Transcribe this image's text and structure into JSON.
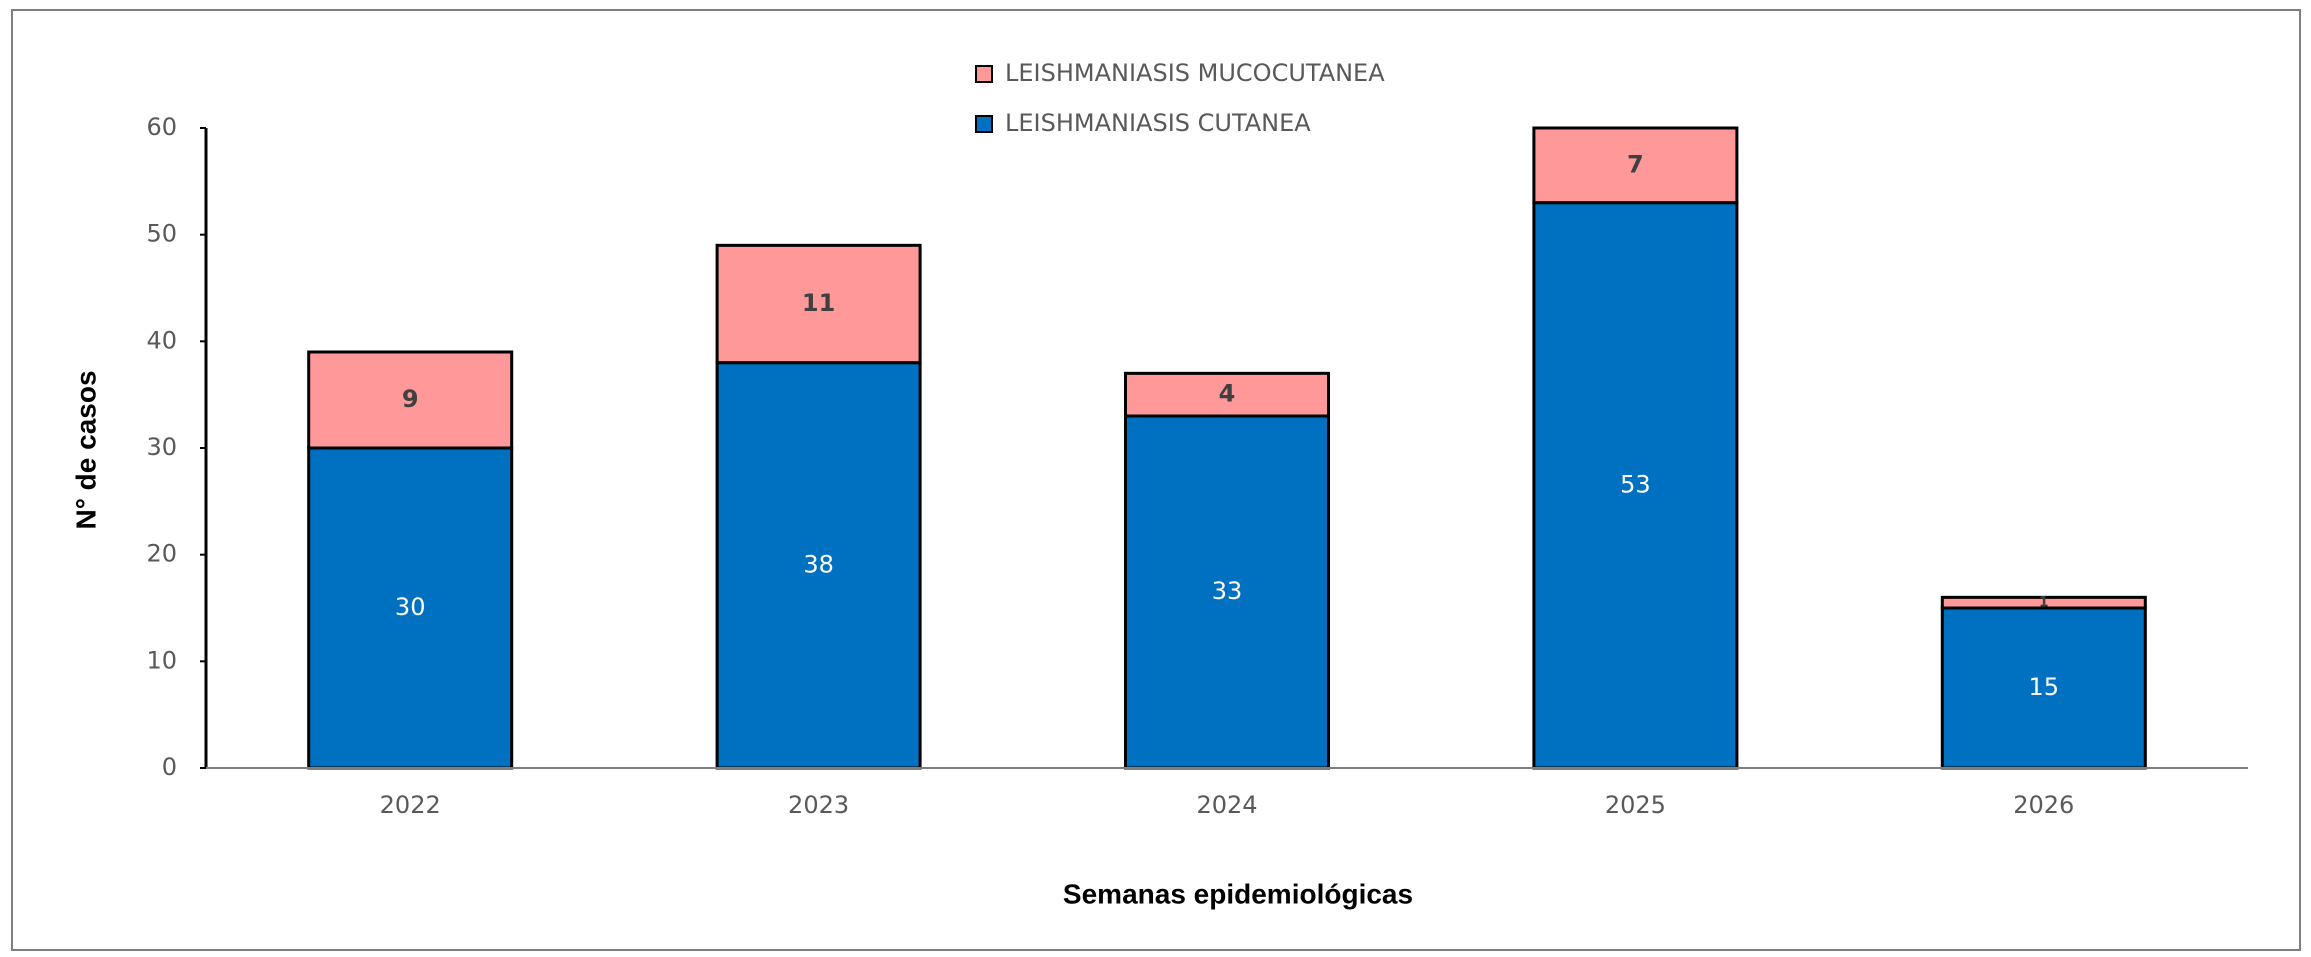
{
  "chart_data": {
    "type": "stacked_bar",
    "x_label": "Semanas epidemiológicas",
    "y_label": "N° de casos",
    "categories": [
      "2022",
      "2023",
      "2024",
      "2025",
      "2026"
    ],
    "series": [
      {
        "name": "LEISHMANIASIS CUTANEA",
        "color": "#0070c0",
        "values": [
          30,
          38,
          33,
          53,
          15
        ]
      },
      {
        "name": "LEISHMANIASIS MUCOCUTANEA",
        "color": "#ff9999",
        "values": [
          9,
          11,
          4,
          7,
          1
        ]
      }
    ],
    "ylim": [
      0,
      60
    ],
    "yticks": [
      0,
      10,
      20,
      30,
      40,
      50,
      60
    ],
    "legend": "top"
  }
}
